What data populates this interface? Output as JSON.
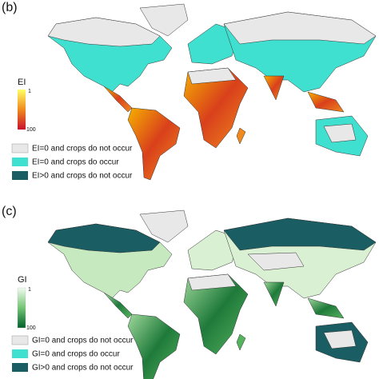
{
  "panels": [
    {
      "label": "(b)",
      "colorbar": {
        "title": "EI",
        "top": "1",
        "bottom": "100"
      },
      "legend": [
        "EI=0 and crops do not occur",
        "EI=0 and crops do occur",
        "EI>0 and crops do not occur"
      ]
    },
    {
      "label": "(c)",
      "colorbar": {
        "title": "GI",
        "top": "1",
        "bottom": "100"
      },
      "legend": [
        "GI=0 and crops do not occur",
        "GI=0 and crops do occur",
        "GI>0 and crops do not occur"
      ]
    }
  ]
}
